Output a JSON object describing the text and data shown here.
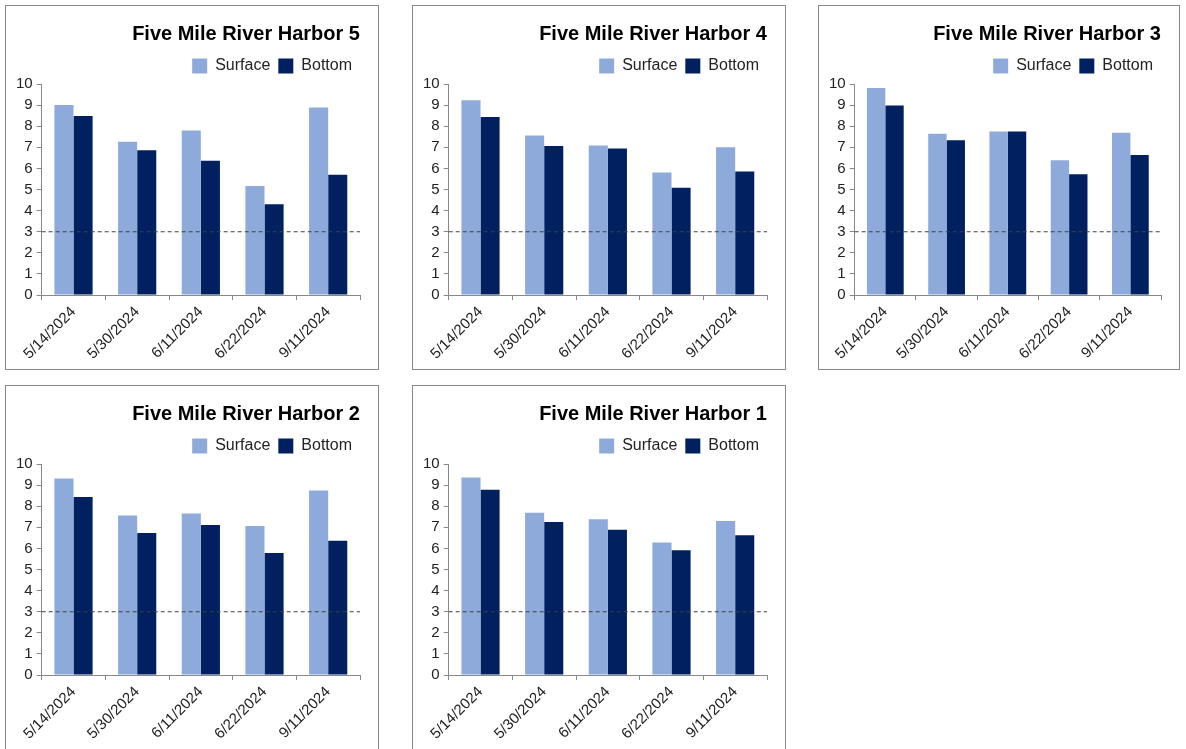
{
  "chart_data": [
    {
      "type": "bar",
      "title": "Five Mile River Harbor 5",
      "categories": [
        "5/14/2024",
        "5/30/2024",
        "6/11/2024",
        "6/22/2024",
        "9/11/2024"
      ],
      "series": [
        {
          "name": "Surface",
          "color": "#8eaadb",
          "values": [
            9.0,
            7.27,
            7.8,
            5.17,
            8.89
          ]
        },
        {
          "name": "Bottom",
          "color": "#002060",
          "values": [
            8.48,
            6.86,
            6.36,
            4.3,
            5.7
          ]
        }
      ],
      "ylim": [
        0,
        10
      ],
      "yticks": [
        0,
        1,
        2,
        3,
        4,
        5,
        6,
        7,
        8,
        9,
        10
      ],
      "grid": false,
      "legend": "top right",
      "ref_lines": [
        {
          "axis": "y",
          "value": 3,
          "color": "#404040",
          "line_style": "dashed"
        }
      ]
    },
    {
      "type": "bar",
      "title": "Five Mile River Harbor 4",
      "categories": [
        "5/14/2024",
        "5/30/2024",
        "6/11/2024",
        "6/22/2024",
        "9/11/2024"
      ],
      "series": [
        {
          "name": "Surface",
          "color": "#8eaadb",
          "values": [
            9.23,
            7.56,
            7.09,
            5.81,
            7.0
          ]
        },
        {
          "name": "Bottom",
          "color": "#002060",
          "values": [
            8.44,
            7.06,
            6.95,
            5.09,
            5.86
          ]
        }
      ],
      "ylim": [
        0,
        10
      ],
      "yticks": [
        0,
        1,
        2,
        3,
        4,
        5,
        6,
        7,
        8,
        9,
        10
      ],
      "grid": false,
      "legend": "top right",
      "ref_lines": [
        {
          "axis": "y",
          "value": 3,
          "color": "#404040",
          "line_style": "dashed"
        }
      ]
    },
    {
      "type": "bar",
      "title": "Five Mile River Harbor 3",
      "categories": [
        "5/14/2024",
        "5/30/2024",
        "6/11/2024",
        "6/22/2024",
        "9/11/2024"
      ],
      "series": [
        {
          "name": "Surface",
          "color": "#8eaadb",
          "values": [
            9.81,
            7.64,
            7.75,
            6.39,
            7.69
          ]
        },
        {
          "name": "Bottom",
          "color": "#002060",
          "values": [
            8.98,
            7.34,
            7.75,
            5.73,
            6.64
          ]
        }
      ],
      "ylim": [
        0,
        10
      ],
      "yticks": [
        0,
        1,
        2,
        3,
        4,
        5,
        6,
        7,
        8,
        9,
        10
      ],
      "grid": false,
      "legend": "top right",
      "ref_lines": [
        {
          "axis": "y",
          "value": 3,
          "color": "#404040",
          "line_style": "dashed"
        }
      ]
    },
    {
      "type": "bar",
      "title": "Five Mile River Harbor 2",
      "categories": [
        "5/14/2024",
        "5/30/2024",
        "6/11/2024",
        "6/22/2024",
        "9/11/2024"
      ],
      "series": [
        {
          "name": "Surface",
          "color": "#8eaadb",
          "values": [
            9.31,
            7.56,
            7.66,
            7.06,
            8.75
          ]
        },
        {
          "name": "Bottom",
          "color": "#002060",
          "values": [
            8.44,
            6.73,
            7.11,
            5.78,
            6.36
          ]
        }
      ],
      "ylim": [
        0,
        10
      ],
      "yticks": [
        0,
        1,
        2,
        3,
        4,
        5,
        6,
        7,
        8,
        9,
        10
      ],
      "grid": false,
      "legend": "top right",
      "ref_lines": [
        {
          "axis": "y",
          "value": 3,
          "color": "#404040",
          "line_style": "dashed"
        }
      ]
    },
    {
      "type": "bar",
      "title": "Five Mile River Harbor 1",
      "categories": [
        "5/14/2024",
        "5/30/2024",
        "6/11/2024",
        "6/22/2024",
        "9/11/2024"
      ],
      "series": [
        {
          "name": "Surface",
          "color": "#8eaadb",
          "values": [
            9.36,
            7.69,
            7.38,
            6.28,
            7.3
          ]
        },
        {
          "name": "Bottom",
          "color": "#002060",
          "values": [
            8.78,
            7.25,
            6.89,
            5.91,
            6.63
          ]
        }
      ],
      "ylim": [
        0,
        10
      ],
      "yticks": [
        0,
        1,
        2,
        3,
        4,
        5,
        6,
        7,
        8,
        9,
        10
      ],
      "grid": false,
      "legend": "top right",
      "ref_lines": [
        {
          "axis": "y",
          "value": 3,
          "color": "#404040",
          "line_style": "dashed"
        }
      ]
    }
  ]
}
